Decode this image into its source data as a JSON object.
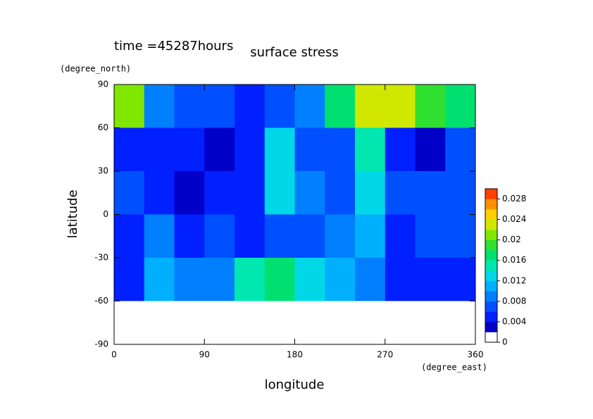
{
  "chart_data": {
    "type": "contour",
    "title": "surface stress",
    "subtitle": "time =45287hours",
    "x_label": "longitude",
    "x_unit": "(degree_east)",
    "y_label": "latitude",
    "y_unit": "(degree_north)",
    "x": [
      15,
      45,
      75,
      105,
      135,
      165,
      195,
      225,
      255,
      285,
      315,
      345
    ],
    "y": [
      75,
      45,
      15,
      -15,
      -45,
      -75
    ],
    "z": [
      [
        0.02,
        0.008,
        0.006,
        0.006,
        0.004,
        0.006,
        0.008,
        0.016,
        0.022,
        0.022,
        0.018,
        0.016
      ],
      [
        0.004,
        0.004,
        0.004,
        0.002,
        0.004,
        0.012,
        0.006,
        0.006,
        0.014,
        0.004,
        0.002,
        0.006
      ],
      [
        0.006,
        0.004,
        0.002,
        0.004,
        0.004,
        0.012,
        0.008,
        0.006,
        0.012,
        0.006,
        0.006,
        0.006
      ],
      [
        0.004,
        0.008,
        0.004,
        0.006,
        0.004,
        0.006,
        0.006,
        0.008,
        0.01,
        0.004,
        0.006,
        0.006
      ],
      [
        0.004,
        0.01,
        0.008,
        0.008,
        0.014,
        0.016,
        0.012,
        0.01,
        0.008,
        0.004,
        0.004,
        0.004
      ],
      [
        0,
        0,
        0,
        0,
        0,
        0,
        0,
        0,
        0,
        0,
        0,
        0
      ]
    ],
    "xlim": [
      0,
      360
    ],
    "xticks": [
      0,
      90,
      180,
      270,
      360
    ],
    "ylim": [
      -90,
      90
    ],
    "yticks": [
      -90,
      -60,
      -30,
      0,
      30,
      60,
      90
    ],
    "zlim": [
      0,
      0.03
    ],
    "zticks": [
      0,
      0.004,
      0.008,
      0.012,
      0.016,
      0.02,
      0.024,
      0.028
    ],
    "colors": [
      "#ffffff",
      "#0000c8",
      "#0020ff",
      "#0050ff",
      "#0080ff",
      "#00b0ff",
      "#00d8e8",
      "#00e8b0",
      "#00e070",
      "#30e030",
      "#80e800",
      "#d0e800",
      "#ffd000",
      "#ff9000",
      "#ff4000"
    ]
  }
}
